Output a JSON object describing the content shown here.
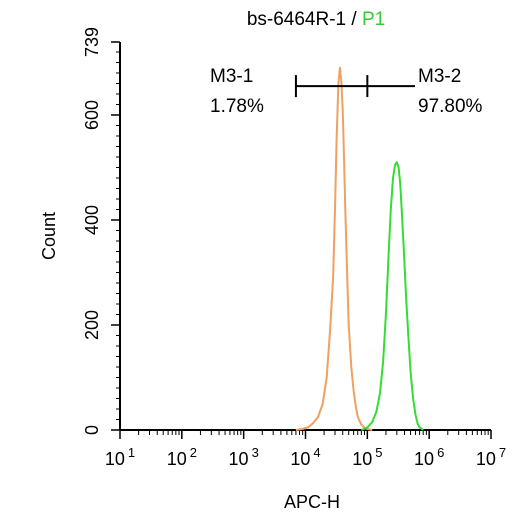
{
  "chart_data": {
    "type": "line",
    "title_sample": "bs-6464R-1",
    "title_separator": " / ",
    "title_gate": "P1",
    "xlabel": "APC-H",
    "ylabel": "Count",
    "x_scale": "log",
    "xlim": [
      10,
      10000000
    ],
    "ylim": [
      0,
      739
    ],
    "x_ticks": [
      {
        "base": "10",
        "exp": "1"
      },
      {
        "base": "10",
        "exp": "2"
      },
      {
        "base": "10",
        "exp": "3"
      },
      {
        "base": "10",
        "exp": "4"
      },
      {
        "base": "10",
        "exp": "5"
      },
      {
        "base": "10",
        "exp": "6"
      },
      {
        "base": "10",
        "exp": "7"
      }
    ],
    "y_ticks": [
      "0",
      "200",
      "400",
      "600",
      "739"
    ],
    "grid": false,
    "legend": "none",
    "colors": {
      "control": "#f0a060",
      "sample": "#33dd33",
      "axis": "#000000",
      "gate_text": "#33cc33"
    },
    "series": [
      {
        "x": [
          7000,
          9000,
          11000,
          13000,
          16000,
          19000,
          22000,
          25000,
          28000,
          30000,
          32000,
          34000,
          36000,
          38000,
          40000,
          42000,
          44000,
          47000,
          50000,
          55000,
          60000,
          65000,
          70000,
          80000,
          90000,
          100000,
          120000
        ],
        "values": [
          0,
          2,
          5,
          12,
          25,
          50,
          100,
          190,
          290,
          420,
          560,
          660,
          690,
          665,
          610,
          520,
          420,
          300,
          200,
          120,
          75,
          45,
          25,
          10,
          4,
          2,
          0
        ]
      },
      {
        "x": [
          80000,
          100000,
          120000,
          140000,
          160000,
          180000,
          200000,
          220000,
          240000,
          260000,
          280000,
          300000,
          320000,
          340000,
          360000,
          390000,
          420000,
          460000,
          500000,
          550000,
          600000,
          650000,
          700000,
          800000
        ],
        "values": [
          0,
          5,
          15,
          35,
          70,
          130,
          220,
          330,
          420,
          480,
          505,
          510,
          500,
          470,
          420,
          340,
          260,
          180,
          110,
          60,
          30,
          12,
          5,
          0
        ]
      }
    ],
    "gates": [
      {
        "name": "M3-1",
        "percent": "1.78%",
        "x_range": [
          7000,
          100000
        ]
      },
      {
        "name": "M3-2",
        "percent": "97.80%",
        "x_range": [
          100000,
          10000000
        ]
      }
    ]
  }
}
